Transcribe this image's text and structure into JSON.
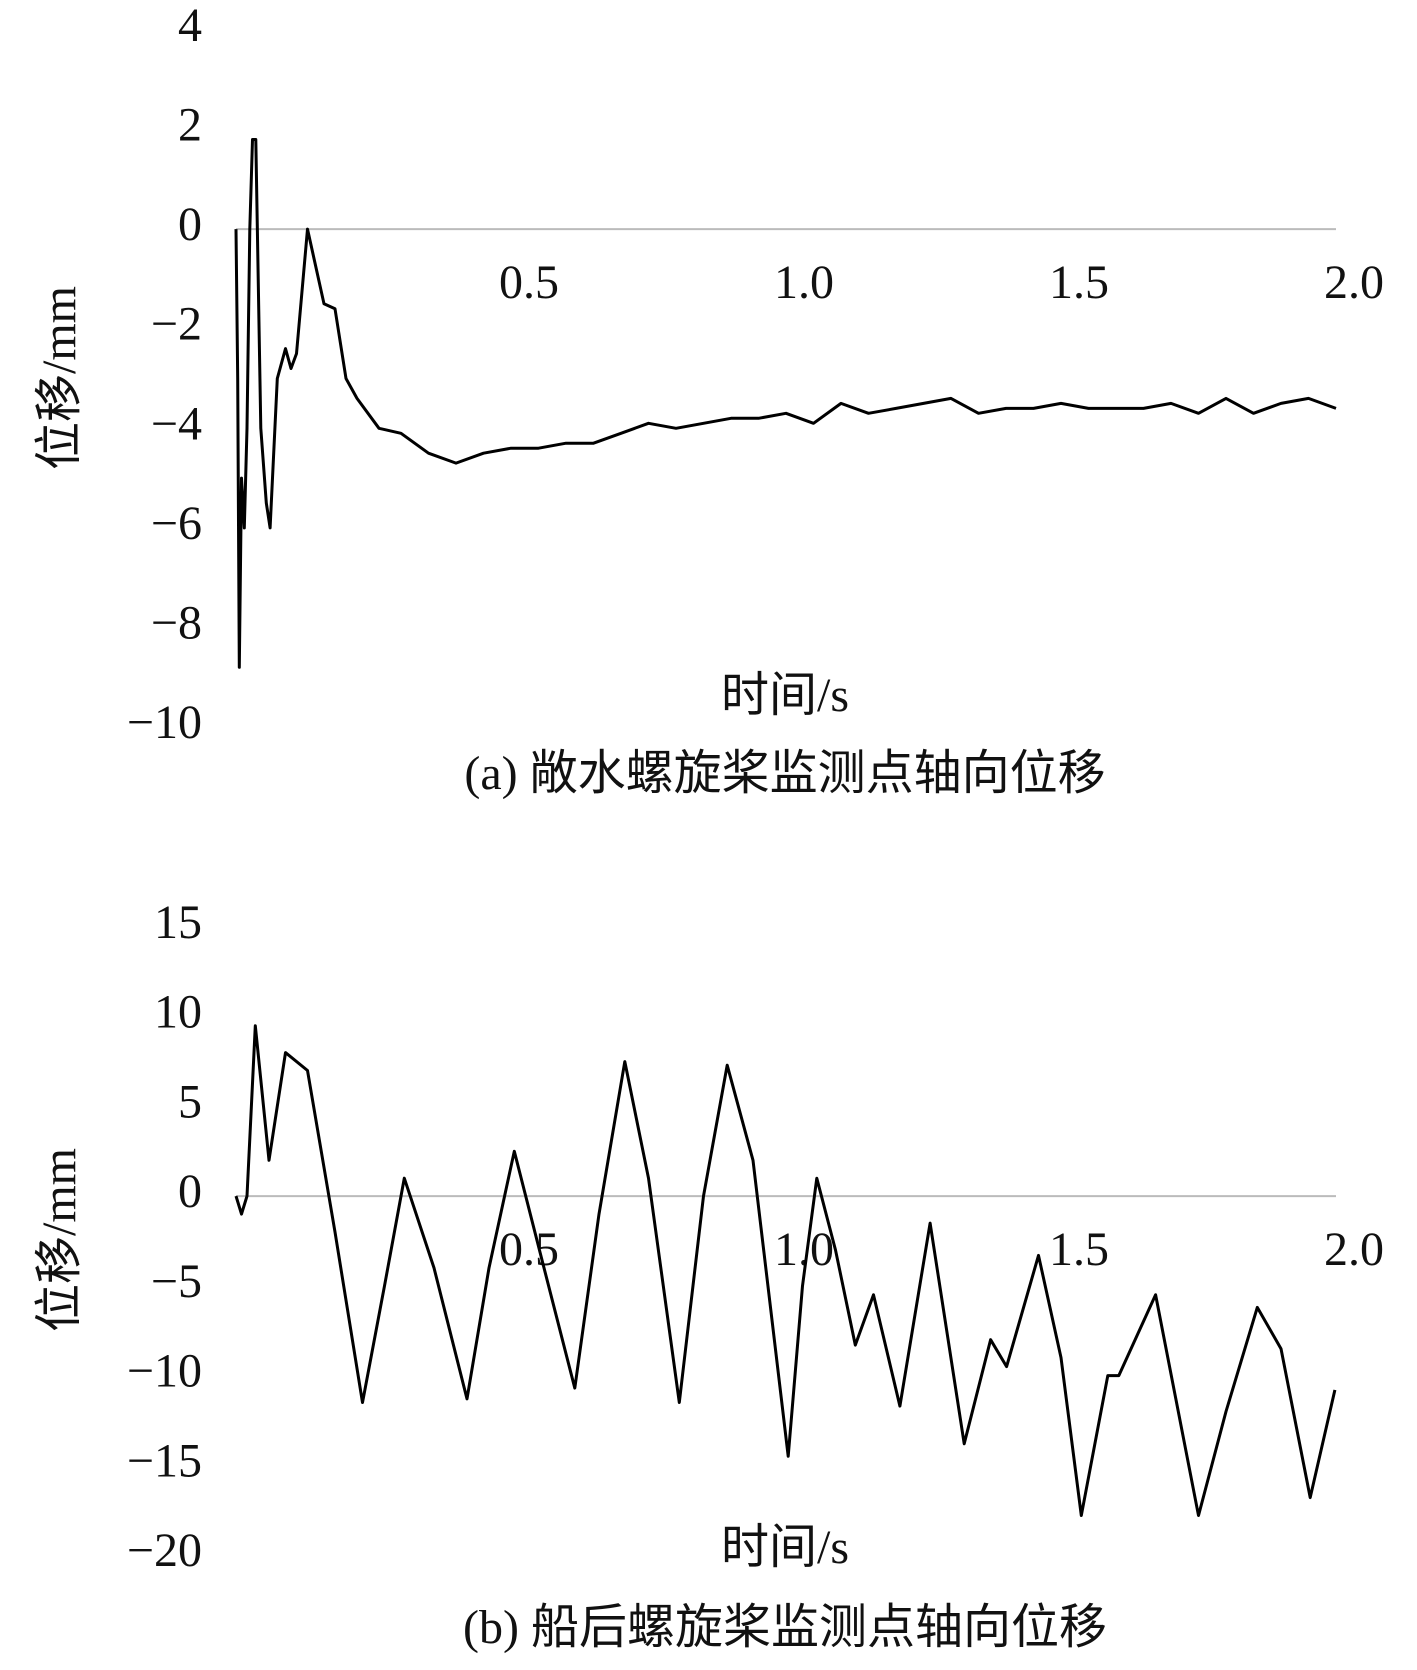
{
  "chart_data": [
    {
      "type": "line",
      "title": "(a) 敞水螺旋桨监测点轴向位移",
      "x_label": "时间/s",
      "y_label": "位移/mm",
      "color": "#000000",
      "x": [
        0,
        0.003,
        0.006,
        0.01,
        0.015,
        0.02,
        0.025,
        0.03,
        0.036,
        0.045,
        0.055,
        0.062,
        0.075,
        0.09,
        0.1,
        0.11,
        0.13,
        0.14,
        0.16,
        0.18,
        0.2,
        0.22,
        0.26,
        0.3,
        0.35,
        0.4,
        0.45,
        0.5,
        0.55,
        0.6,
        0.65,
        0.7,
        0.75,
        0.8,
        0.85,
        0.9,
        0.95,
        1.0,
        1.05,
        1.1,
        1.15,
        1.2,
        1.25,
        1.3,
        1.35,
        1.4,
        1.45,
        1.5,
        1.55,
        1.6,
        1.65,
        1.7,
        1.75,
        1.8,
        1.85,
        1.9,
        1.95,
        2.0
      ],
      "values": [
        0,
        -3,
        -8.8,
        -5,
        -6,
        -4,
        0,
        1.8,
        1.8,
        -4,
        -5.5,
        -6,
        -3,
        -2.4,
        -2.8,
        -2.5,
        0,
        -0.5,
        -1.5,
        -1.6,
        -3,
        -3.4,
        -4,
        -4.1,
        -4.5,
        -4.7,
        -4.5,
        -4.4,
        -4.4,
        -4.3,
        -4.3,
        -4.1,
        -3.9,
        -4.0,
        -3.9,
        -3.8,
        -3.8,
        -3.7,
        -3.9,
        -3.5,
        -3.7,
        -3.6,
        -3.5,
        -3.4,
        -3.7,
        -3.6,
        -3.6,
        -3.5,
        -3.6,
        -3.6,
        -3.6,
        -3.5,
        -3.7,
        -3.4,
        -3.7,
        -3.5,
        -3.4,
        -3.6
      ],
      "xlim": [
        0,
        2
      ],
      "xticks": [
        0.5,
        {
          "value": 1,
          "label": "1.0"
        },
        1.5,
        {
          "value": 2,
          "label": "2.0"
        }
      ],
      "ylim": [
        -10,
        4
      ],
      "yticks": [
        {
          "value": -10,
          "label": "−10"
        },
        {
          "value": -8,
          "label": "−8"
        },
        {
          "value": -6,
          "label": "−6"
        },
        {
          "value": -4,
          "label": "−4"
        },
        {
          "value": -2,
          "label": "−2"
        },
        0,
        2,
        4
      ]
    },
    {
      "type": "line",
      "title": "(b) 船后螺旋桨监测点轴向位移",
      "x_label": "时间/s",
      "y_label": "位移/mm",
      "color": "#000000",
      "x": [
        0,
        0.01,
        0.02,
        0.035,
        0.06,
        0.09,
        0.13,
        0.18,
        0.23,
        0.27,
        0.306,
        0.36,
        0.42,
        0.46,
        0.506,
        0.56,
        0.616,
        0.66,
        0.707,
        0.75,
        0.806,
        0.85,
        0.893,
        0.94,
        1.004,
        1.03,
        1.056,
        1.09,
        1.126,
        1.159,
        1.207,
        1.262,
        1.324,
        1.372,
        1.401,
        1.459,
        1.5,
        1.537,
        1.585,
        1.605,
        1.672,
        1.75,
        1.8,
        1.857,
        1.9,
        1.953,
        1.998
      ],
      "values": [
        0,
        -1,
        0,
        9.5,
        2,
        8,
        7,
        -2,
        -11.5,
        -5,
        1,
        -4,
        -11.3,
        -4,
        2.5,
        -4,
        -10.7,
        -1,
        7.5,
        1,
        -11.5,
        0,
        7.3,
        2,
        -14.5,
        -5,
        1,
        -3,
        -8.3,
        -5.5,
        -11.7,
        -1.5,
        -13.8,
        -8,
        -9.5,
        -3.3,
        -9,
        -17.8,
        -10,
        -10,
        -5.5,
        -17.8,
        -12,
        -6.2,
        -8.5,
        -16.8,
        -10.8
      ],
      "xlim": [
        0,
        2
      ],
      "xticks": [
        0.5,
        {
          "value": 1,
          "label": "1.0"
        },
        1.5,
        {
          "value": 2,
          "label": "2.0"
        }
      ],
      "ylim": [
        -20,
        15
      ],
      "yticks": [
        {
          "value": -20,
          "label": "−20"
        },
        {
          "value": -15,
          "label": "−15"
        },
        {
          "value": -10,
          "label": "−10"
        },
        {
          "value": -5,
          "label": "−5"
        },
        0,
        5,
        10,
        15
      ]
    }
  ]
}
